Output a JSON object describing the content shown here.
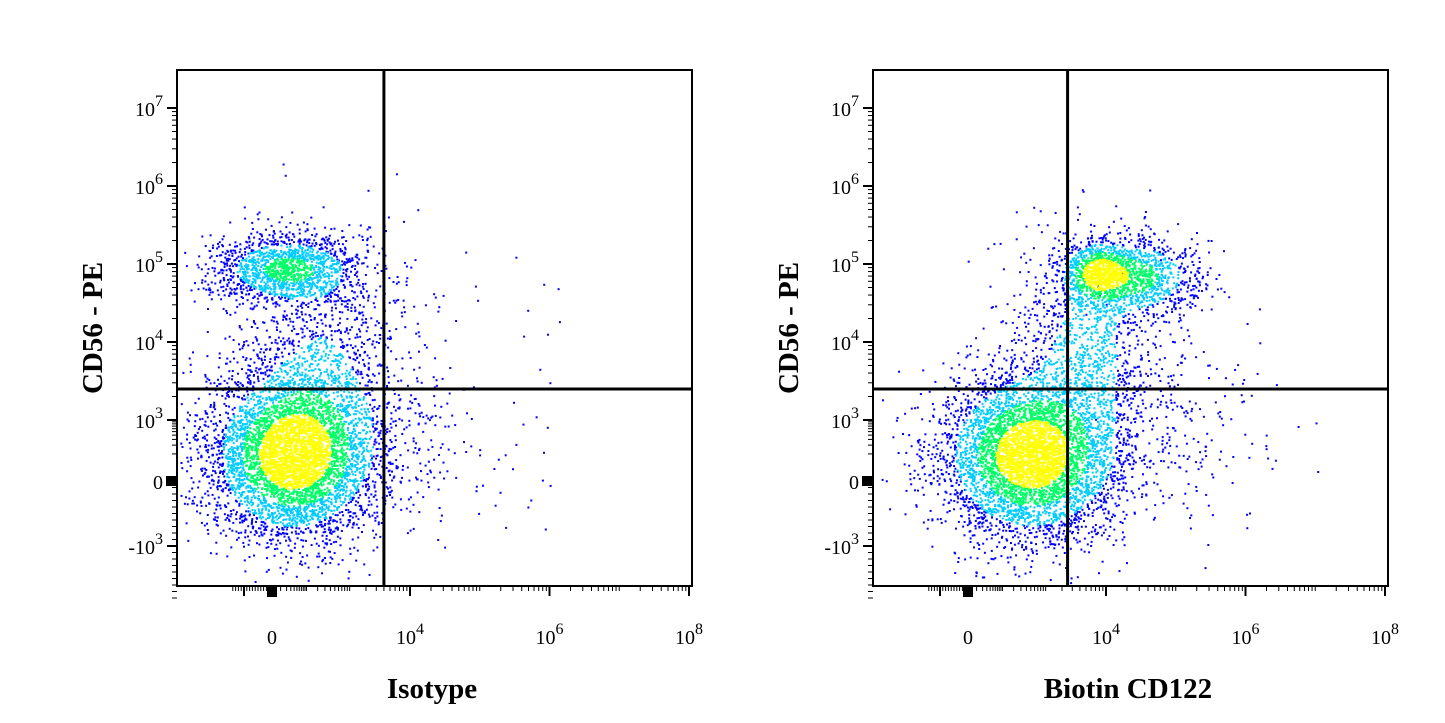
{
  "chart_data": [
    {
      "type": "scatter",
      "subtype": "flow-cytometry-density-dot-plot",
      "xlabel": "Isotype",
      "ylabel": "CD56 - PE",
      "xscale": "biexponential",
      "yscale": "biexponential",
      "x_tick_labels": [
        "0",
        "10^4",
        "10^6",
        "10^8"
      ],
      "y_tick_labels": [
        "10^7",
        "10^6",
        "10^5",
        "10^4",
        "10^3",
        "0",
        "-10^3"
      ],
      "quadrant_gate": {
        "x": 4000,
        "y": 2500
      },
      "populations": [
        {
          "name": "",
          "x_center": 300,
          "y_center": 300,
          "density": "high"
        },
        {
          "name": "",
          "x_center": 500,
          "y_center": 70000,
          "density": "medium"
        }
      ],
      "grid": false,
      "legend": "none",
      "color_scale": [
        "#0000ff",
        "#00ccff",
        "#00ff66",
        "#ffff00",
        "#ff0000"
      ]
    },
    {
      "type": "scatter",
      "subtype": "flow-cytometry-density-dot-plot",
      "xlabel": "Biotin CD122",
      "ylabel": "CD56 - PE",
      "xscale": "biexponential",
      "yscale": "biexponential",
      "x_tick_labels": [
        "0",
        "10^4",
        "10^6",
        "10^8"
      ],
      "y_tick_labels": [
        "10^7",
        "10^6",
        "10^5",
        "10^4",
        "10^3",
        "0",
        "-10^3"
      ],
      "quadrant_gate": {
        "x": 2500,
        "y": 2500
      },
      "populations": [
        {
          "name": "",
          "x_center": 800,
          "y_center": 300,
          "density": "high"
        },
        {
          "name": "",
          "x_center": 6000,
          "y_center": 60000,
          "density": "high"
        },
        {
          "name": "",
          "x_center": 25000,
          "y_center": 50000,
          "density": "medium"
        }
      ],
      "grid": false,
      "legend": "none",
      "color_scale": [
        "#0000ff",
        "#00ccff",
        "#00ff66",
        "#ffff00",
        "#ff0000"
      ]
    }
  ]
}
